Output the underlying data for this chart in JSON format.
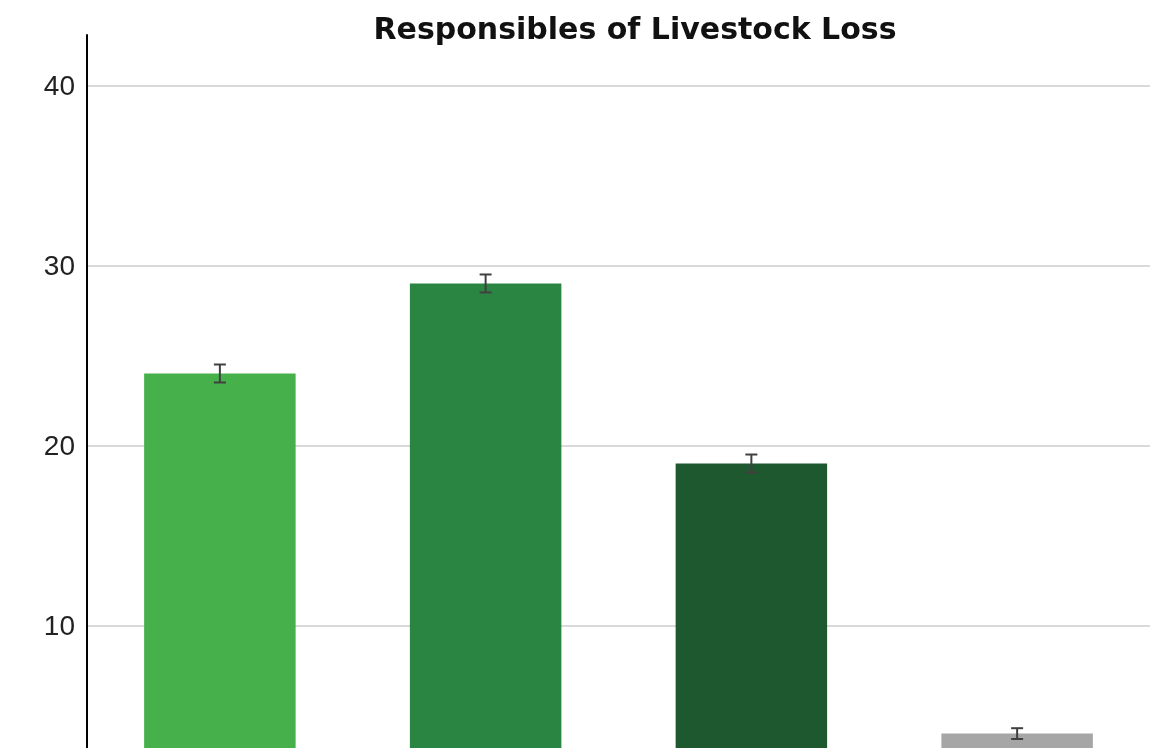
{
  "chart_data": {
    "type": "bar",
    "title": "Responsibles of Livestock Loss",
    "categories": [
      null,
      null,
      null,
      null
    ],
    "values": [
      24,
      29,
      19,
      4
    ],
    "colors": [
      "#46b04a",
      "#2a8442",
      "#1e582e",
      "#a6a6a6"
    ],
    "errors": [
      0.5,
      0.5,
      0.5,
      0.3
    ],
    "ylim": [
      3.2,
      42.8
    ],
    "yticks": [
      10,
      20,
      30,
      40
    ],
    "grid": "y",
    "tick_labels": "y"
  }
}
